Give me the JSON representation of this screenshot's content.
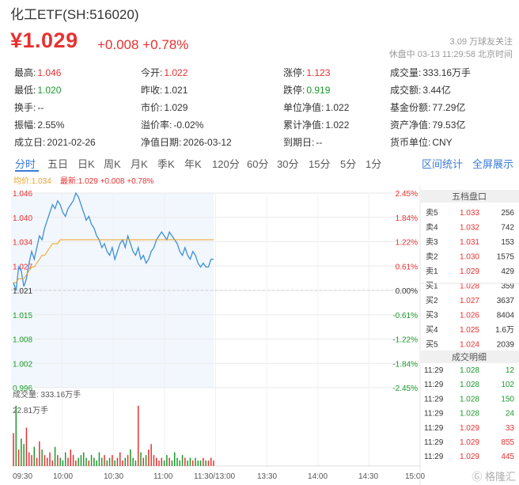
{
  "header": {
    "title": "化工ETF(SH:516020)",
    "price": "¥1.029",
    "change": "+0.008",
    "change_pct": "+0.78%",
    "followers": "3.09 万球友关注",
    "status": "休盘中 03-13 11:29:58 北京时间"
  },
  "stats": [
    {
      "label": "最高:",
      "value": "1.046",
      "color": "red"
    },
    {
      "label": "今开:",
      "value": "1.022",
      "color": "red"
    },
    {
      "label": "涨停:",
      "value": "1.123",
      "color": "red"
    },
    {
      "label": "成交量:",
      "value": "333.16万手",
      "color": ""
    },
    {
      "label": "最低:",
      "value": "1.020",
      "color": "green"
    },
    {
      "label": "昨收:",
      "value": "1.021",
      "color": ""
    },
    {
      "label": "跌停:",
      "value": "0.919",
      "color": "green"
    },
    {
      "label": "成交额:",
      "value": "3.44亿",
      "color": ""
    },
    {
      "label": "换手:",
      "value": "--",
      "color": ""
    },
    {
      "label": "市价:",
      "value": "1.029",
      "color": ""
    },
    {
      "label": "单位净值:",
      "value": "1.022",
      "color": ""
    },
    {
      "label": "基金份额:",
      "value": "77.29亿",
      "color": ""
    },
    {
      "label": "振幅:",
      "value": "2.55%",
      "color": ""
    },
    {
      "label": "溢价率:",
      "value": "-0.02%",
      "color": ""
    },
    {
      "label": "累计净值:",
      "value": "1.022",
      "color": ""
    },
    {
      "label": "资产净值:",
      "value": "79.53亿",
      "color": ""
    },
    {
      "label": "成立日:",
      "value": "2021-02-26",
      "color": ""
    },
    {
      "label": "净值日期:",
      "value": "2026-03-12",
      "color": ""
    },
    {
      "label": "到期日:",
      "value": "--",
      "color": ""
    },
    {
      "label": "货币单位:",
      "value": "CNY",
      "color": ""
    }
  ],
  "tabs": [
    "分时",
    "五日",
    "日K",
    "周K",
    "月K",
    "季K",
    "年K",
    "120分",
    "60分",
    "30分",
    "15分",
    "5分",
    "1分"
  ],
  "tabs_right": [
    "区间统计",
    "全屏展示"
  ],
  "legend": {
    "avg": "均价:1.034",
    "last": "最新:1.029 +0.008 +0.78%"
  },
  "colors": {
    "up": "#e93030",
    "down": "#1b9a2b",
    "line": "#3b8fd8",
    "avg": "#f0a020",
    "accent": "#3b7bd8"
  },
  "chart_data": {
    "type": "line",
    "y_left_ticks": [
      "1.046",
      "1.040",
      "1.034",
      "1.027",
      "1.021",
      "1.015",
      "1.008",
      "1.002",
      "0.996"
    ],
    "y_right_ticks": [
      "2.45%",
      "1.84%",
      "1.22%",
      "0.61%",
      "0.00%",
      "-0.61%",
      "-1.22%",
      "-1.84%",
      "-2.45%"
    ],
    "ylim": [
      0.996,
      1.046
    ],
    "prev_close": 1.021,
    "x_ticks": [
      "09:30",
      "10:00",
      "10:30",
      "11:00",
      "11:30/13:00",
      "13:30",
      "14:00",
      "14:30",
      "15:00"
    ],
    "price_series": [
      1.023,
      1.021,
      1.027,
      1.026,
      1.022,
      1.024,
      1.028,
      1.031,
      1.029,
      1.032,
      1.035,
      1.034,
      1.037,
      1.039,
      1.041,
      1.043,
      1.042,
      1.044,
      1.043,
      1.041,
      1.04,
      1.042,
      1.043,
      1.044,
      1.046,
      1.045,
      1.043,
      1.041,
      1.039,
      1.04,
      1.038,
      1.037,
      1.035,
      1.034,
      1.032,
      1.033,
      1.031,
      1.03,
      1.032,
      1.029,
      1.031,
      1.033,
      1.034,
      1.032,
      1.035,
      1.033,
      1.031,
      1.03,
      1.032,
      1.029,
      1.03,
      1.028,
      1.029,
      1.031,
      1.032,
      1.034,
      1.035,
      1.036,
      1.035,
      1.034,
      1.036,
      1.035,
      1.034,
      1.033,
      1.031,
      1.03,
      1.032,
      1.03,
      1.029,
      1.031,
      1.03,
      1.028,
      1.027,
      1.028,
      1.027,
      1.027,
      1.029,
      1.029
    ],
    "avg_series": [
      1.023,
      1.023,
      1.024,
      1.024,
      1.024,
      1.025,
      1.026,
      1.027,
      1.027,
      1.028,
      1.029,
      1.03,
      1.03,
      1.031,
      1.032,
      1.033,
      1.033,
      1.033,
      1.034,
      1.034,
      1.034,
      1.034,
      1.034,
      1.034,
      1.034,
      1.034,
      1.034,
      1.034,
      1.034,
      1.034,
      1.034,
      1.034,
      1.034,
      1.034,
      1.034,
      1.034,
      1.034,
      1.034,
      1.034,
      1.034,
      1.034,
      1.034,
      1.034,
      1.034,
      1.034,
      1.034,
      1.034,
      1.034,
      1.034,
      1.034,
      1.034,
      1.034,
      1.034,
      1.034,
      1.034,
      1.034,
      1.034,
      1.034,
      1.034,
      1.034,
      1.034,
      1.034,
      1.034,
      1.034,
      1.034,
      1.034,
      1.034,
      1.034,
      1.034,
      1.034,
      1.034,
      1.034,
      1.034,
      1.034,
      1.034,
      1.034,
      1.034,
      1.034
    ],
    "volume_title": "成交量: 333.16万手",
    "volume_max_label": "22.81万手",
    "volume_max": 22.81,
    "volume_series": [
      12,
      22,
      6,
      10,
      8,
      14,
      5,
      4,
      7,
      3,
      9,
      6,
      4,
      3,
      5,
      2,
      7,
      4,
      3,
      2,
      5,
      3,
      6,
      4,
      2,
      3,
      4,
      5,
      3,
      2,
      4,
      3,
      2,
      5,
      3,
      4,
      2,
      3,
      4,
      2,
      3,
      5,
      2,
      3,
      4,
      6,
      3,
      2,
      22,
      5,
      3,
      4,
      6,
      8,
      4,
      3,
      2,
      3,
      2,
      4,
      3,
      2,
      5,
      3,
      2,
      4,
      3,
      2,
      3,
      2,
      3,
      2,
      2,
      3,
      2,
      2,
      3,
      2
    ]
  },
  "orderbook": {
    "title": "五档盘口",
    "rows": [
      {
        "label": "卖5",
        "price": "1.033",
        "vol": "256",
        "color": "red"
      },
      {
        "label": "卖4",
        "price": "1.032",
        "vol": "742",
        "color": "red"
      },
      {
        "label": "卖3",
        "price": "1.031",
        "vol": "153",
        "color": "red"
      },
      {
        "label": "卖2",
        "price": "1.030",
        "vol": "1575",
        "color": "red"
      },
      {
        "label": "卖1",
        "price": "1.029",
        "vol": "429",
        "color": "red"
      },
      {
        "label": "买1",
        "price": "1.028",
        "vol": "359",
        "color": "red"
      },
      {
        "label": "买2",
        "price": "1.027",
        "vol": "3637",
        "color": "red"
      },
      {
        "label": "买3",
        "price": "1.026",
        "vol": "8404",
        "color": "red"
      },
      {
        "label": "买4",
        "price": "1.025",
        "vol": "1.6万",
        "color": "red"
      },
      {
        "label": "买5",
        "price": "1.024",
        "vol": "2039",
        "color": "red"
      }
    ]
  },
  "trades": {
    "title": "成交明细",
    "rows": [
      {
        "time": "11:29",
        "price": "1.028",
        "vol": "12",
        "color": "green"
      },
      {
        "time": "11:29",
        "price": "1.028",
        "vol": "102",
        "color": "green"
      },
      {
        "time": "11:29",
        "price": "1.028",
        "vol": "150",
        "color": "green"
      },
      {
        "time": "11:29",
        "price": "1.028",
        "vol": "24",
        "color": "green"
      },
      {
        "time": "11:29",
        "price": "1.029",
        "vol": "33",
        "color": "red"
      },
      {
        "time": "11:29",
        "price": "1.029",
        "vol": "855",
        "color": "red"
      },
      {
        "time": "11:29",
        "price": "1.029",
        "vol": "445",
        "color": "red"
      }
    ]
  },
  "watermark": "格隆汇"
}
